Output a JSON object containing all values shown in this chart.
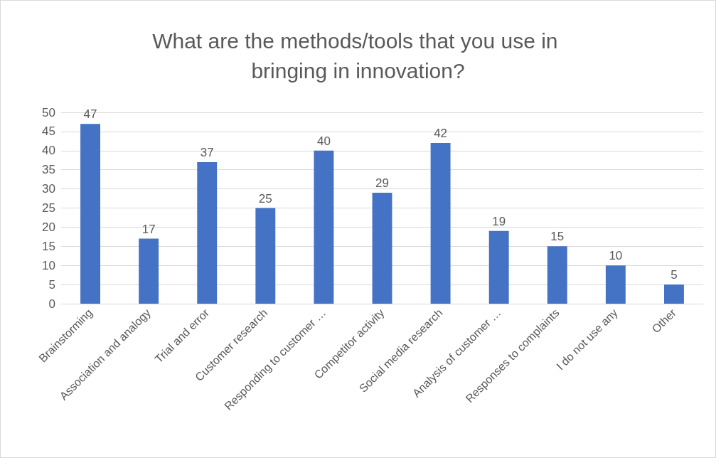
{
  "chart_data": {
    "type": "bar",
    "title": "What are the methods/tools that you use in bringing in innovation?",
    "categories": [
      "Brainstorming",
      "Association and analogy",
      "Trial and error",
      "Customer research",
      "Responding to customer …",
      "Competitor activity",
      "Social media research",
      "Analysis of customer …",
      "Responses to complaints",
      "I do not use any",
      "Other"
    ],
    "values": [
      47,
      17,
      37,
      25,
      40,
      29,
      42,
      19,
      15,
      10,
      5
    ],
    "color": "#4472c4",
    "ylim": [
      0,
      50
    ],
    "yticks": [
      0,
      5,
      10,
      15,
      20,
      25,
      30,
      35,
      40,
      45,
      50
    ],
    "grid": "y",
    "data_labels": true
  }
}
